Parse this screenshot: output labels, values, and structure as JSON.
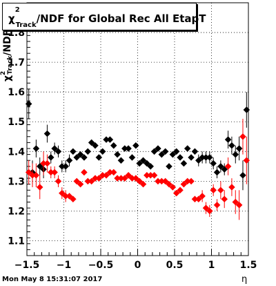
{
  "title": {
    "base": "χ",
    "sup": "2",
    "sub": "Track",
    "rest": "/NDF for Global Rec All EtapT"
  },
  "ylabel": {
    "base": "χ",
    "sup": "2",
    "sub": "Track",
    "rest": "/NDF"
  },
  "xlabel": "η",
  "timestamp": "Mon May  8 15:31:07 2017",
  "chart_data": {
    "type": "scatter",
    "xlim": [
      -1.5,
      1.5
    ],
    "ylim": [
      1.05,
      1.9
    ],
    "xticks": [
      -1.5,
      -1,
      -0.5,
      0,
      0.5,
      1,
      1.5
    ],
    "xtick_labels": [
      "−1.5",
      "−1",
      "−0.5",
      "0",
      "0.5",
      "1",
      "1.5"
    ],
    "yticks": [
      1.1,
      1.2,
      1.3,
      1.4,
      1.5,
      1.6,
      1.7,
      1.8
    ],
    "ytick_labels": [
      "1.1",
      "1.2",
      "1.3",
      "1.4",
      "1.5",
      "1.6",
      "1.7",
      "1.8"
    ],
    "grid": true,
    "series": [
      {
        "color": "#000000",
        "x": [
          -1.475,
          -1.425,
          -1.375,
          -1.325,
          -1.275,
          -1.225,
          -1.175,
          -1.125,
          -1.075,
          -1.025,
          -0.975,
          -0.925,
          -0.875,
          -0.825,
          -0.775,
          -0.725,
          -0.675,
          -0.625,
          -0.575,
          -0.525,
          -0.475,
          -0.425,
          -0.375,
          -0.325,
          -0.275,
          -0.225,
          -0.175,
          -0.125,
          -0.075,
          -0.025,
          0.025,
          0.075,
          0.125,
          0.175,
          0.225,
          0.275,
          0.325,
          0.375,
          0.425,
          0.475,
          0.525,
          0.575,
          0.625,
          0.675,
          0.725,
          0.775,
          0.825,
          0.875,
          0.925,
          0.975,
          1.025,
          1.075,
          1.125,
          1.175,
          1.225,
          1.275,
          1.325,
          1.375,
          1.425,
          1.475
        ],
        "y": [
          1.56,
          1.33,
          1.41,
          1.35,
          1.34,
          1.46,
          1.38,
          1.41,
          1.4,
          1.35,
          1.35,
          1.37,
          1.4,
          1.38,
          1.39,
          1.38,
          1.4,
          1.43,
          1.42,
          1.38,
          1.4,
          1.44,
          1.44,
          1.42,
          1.39,
          1.37,
          1.41,
          1.41,
          1.38,
          1.42,
          1.36,
          1.37,
          1.36,
          1.35,
          1.4,
          1.41,
          1.39,
          1.4,
          1.35,
          1.39,
          1.4,
          1.38,
          1.36,
          1.41,
          1.38,
          1.4,
          1.37,
          1.38,
          1.38,
          1.38,
          1.36,
          1.33,
          1.35,
          1.34,
          1.44,
          1.42,
          1.39,
          1.41,
          1.32,
          1.54
        ],
        "err": [
          0.05,
          0.04,
          0.03,
          0.03,
          0.03,
          0.03,
          0.02,
          0.02,
          0.02,
          0.02,
          0.02,
          0.02,
          0.01,
          0.01,
          0.01,
          0.01,
          0.01,
          0.01,
          0.01,
          0.01,
          0.01,
          0.01,
          0.01,
          0.01,
          0.01,
          0.01,
          0.01,
          0.01,
          0.01,
          0.01,
          0.01,
          0.01,
          0.01,
          0.01,
          0.01,
          0.01,
          0.01,
          0.01,
          0.01,
          0.01,
          0.01,
          0.01,
          0.01,
          0.01,
          0.01,
          0.01,
          0.02,
          0.02,
          0.02,
          0.02,
          0.02,
          0.02,
          0.02,
          0.02,
          0.03,
          0.03,
          0.03,
          0.04,
          0.05,
          0.06
        ]
      },
      {
        "color": "#ff0000",
        "x": [
          -1.475,
          -1.425,
          -1.375,
          -1.325,
          -1.275,
          -1.225,
          -1.175,
          -1.125,
          -1.075,
          -1.025,
          -0.975,
          -0.925,
          -0.875,
          -0.825,
          -0.775,
          -0.725,
          -0.675,
          -0.625,
          -0.575,
          -0.525,
          -0.475,
          -0.425,
          -0.375,
          -0.325,
          -0.275,
          -0.225,
          -0.175,
          -0.125,
          -0.075,
          -0.025,
          0.025,
          0.075,
          0.125,
          0.175,
          0.225,
          0.275,
          0.325,
          0.375,
          0.425,
          0.475,
          0.525,
          0.575,
          0.625,
          0.675,
          0.725,
          0.775,
          0.825,
          0.875,
          0.925,
          0.975,
          1.025,
          1.075,
          1.125,
          1.175,
          1.225,
          1.275,
          1.325,
          1.375,
          1.425,
          1.475
        ],
        "y": [
          1.33,
          1.32,
          1.32,
          1.28,
          1.36,
          1.36,
          1.33,
          1.33,
          1.3,
          1.26,
          1.25,
          1.25,
          1.24,
          1.3,
          1.29,
          1.33,
          1.3,
          1.3,
          1.31,
          1.31,
          1.32,
          1.32,
          1.33,
          1.33,
          1.31,
          1.31,
          1.31,
          1.32,
          1.31,
          1.31,
          1.3,
          1.29,
          1.32,
          1.32,
          1.32,
          1.3,
          1.3,
          1.3,
          1.29,
          1.28,
          1.26,
          1.27,
          1.29,
          1.3,
          1.3,
          1.24,
          1.24,
          1.25,
          1.21,
          1.2,
          1.27,
          1.22,
          1.27,
          1.24,
          1.35,
          1.28,
          1.23,
          1.22,
          1.45,
          1.37
        ],
        "err": [
          0.04,
          0.04,
          0.04,
          0.04,
          0.04,
          0.03,
          0.02,
          0.02,
          0.02,
          0.02,
          0.02,
          0.01,
          0.01,
          0.01,
          0.01,
          0.01,
          0.01,
          0.01,
          0.01,
          0.01,
          0.01,
          0.01,
          0.01,
          0.01,
          0.01,
          0.01,
          0.01,
          0.01,
          0.01,
          0.01,
          0.01,
          0.01,
          0.01,
          0.01,
          0.01,
          0.01,
          0.01,
          0.01,
          0.01,
          0.01,
          0.01,
          0.01,
          0.01,
          0.01,
          0.01,
          0.01,
          0.01,
          0.02,
          0.02,
          0.02,
          0.02,
          0.02,
          0.03,
          0.03,
          0.03,
          0.03,
          0.04,
          0.05,
          0.06,
          0.08
        ]
      }
    ]
  }
}
